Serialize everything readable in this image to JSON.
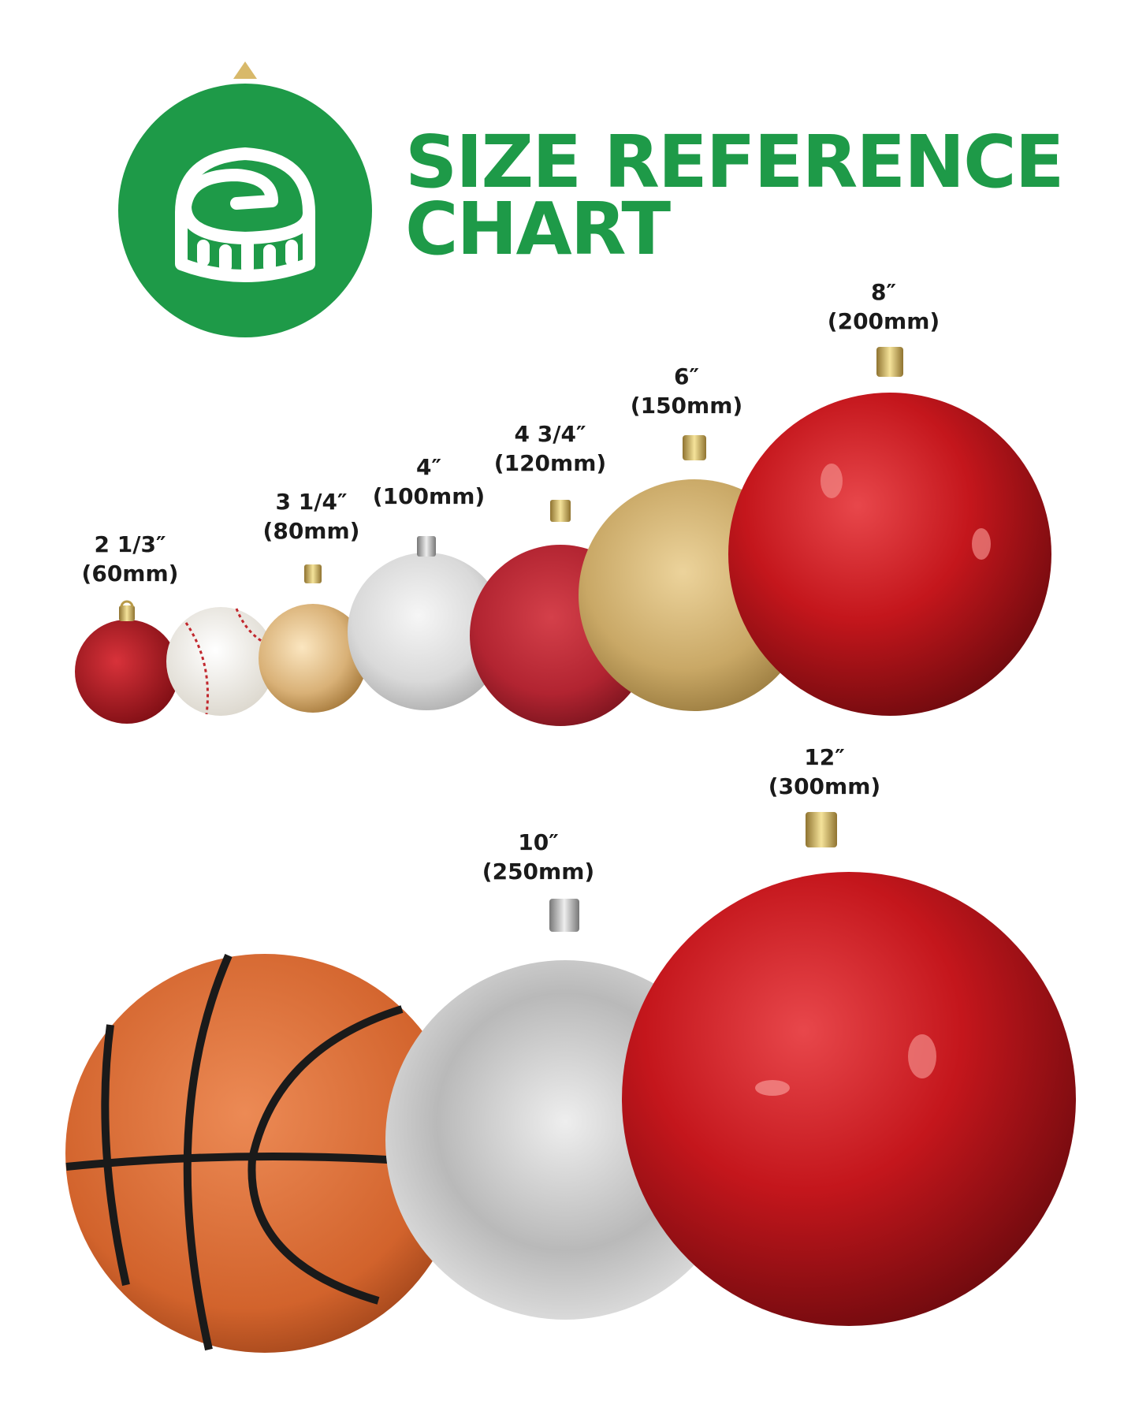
{
  "header": {
    "title_line1": "SIZE REFERENCE",
    "title_line2": "CHART",
    "logo_icon": "measuring-tape-ornament-icon",
    "brand_color": "#1e9a48"
  },
  "items": [
    {
      "name": "60mm-red-glitter-ornament",
      "size_in": "2 1/3″",
      "size_mm": "(60mm)",
      "color": "#b3151c"
    },
    {
      "name": "baseball",
      "color": "#f4f1ea"
    },
    {
      "name": "80mm-gold-shiny-ornament",
      "size_in": "3 1/4″",
      "size_mm": "(80mm)",
      "color": "#d9b177"
    },
    {
      "name": "100mm-silver-glitter-ornament",
      "size_in": "4″",
      "size_mm": "(100mm)",
      "color": "#d9d9d9"
    },
    {
      "name": "120mm-red-matte-ornament",
      "size_in": "4 3/4″",
      "size_mm": "(120mm)",
      "color": "#b22431"
    },
    {
      "name": "150mm-gold-matte-ornament",
      "size_in": "6″",
      "size_mm": "(150mm)",
      "color": "#c9a866"
    },
    {
      "name": "200mm-red-shiny-ornament",
      "size_in": "8″",
      "size_mm": "(200mm)",
      "color": "#c4161c"
    },
    {
      "name": "basketball",
      "color": "#d2632c"
    },
    {
      "name": "250mm-silver-shiny-ornament",
      "size_in": "10″",
      "size_mm": "(250mm)",
      "color": "#c9c9c9"
    },
    {
      "name": "300mm-red-shiny-ornament",
      "size_in": "12″",
      "size_mm": "(300mm)",
      "color": "#c4161c"
    }
  ]
}
